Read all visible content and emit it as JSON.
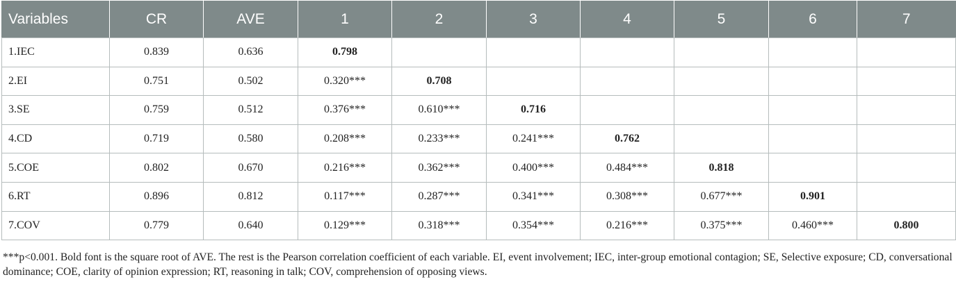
{
  "table": {
    "headers": [
      "Variables",
      "CR",
      "AVE",
      "1",
      "2",
      "3",
      "4",
      "5",
      "6",
      "7"
    ],
    "rows": [
      [
        "1.IEC",
        "0.839",
        "0.636",
        "0.798",
        "",
        "",
        "",
        "",
        "",
        ""
      ],
      [
        "2.EI",
        "0.751",
        "0.502",
        "0.320***",
        "0.708",
        "",
        "",
        "",
        "",
        ""
      ],
      [
        "3.SE",
        "0.759",
        "0.512",
        "0.376***",
        "0.610***",
        "0.716",
        "",
        "",
        "",
        ""
      ],
      [
        "4.CD",
        "0.719",
        "0.580",
        "0.208***",
        "0.233***",
        "0.241***",
        "0.762",
        "",
        "",
        ""
      ],
      [
        "5.COE",
        "0.802",
        "0.670",
        "0.216***",
        "0.362***",
        "0.400***",
        "0.484***",
        "0.818",
        "",
        ""
      ],
      [
        "6.RT",
        "0.896",
        "0.812",
        "0.117***",
        "0.287***",
        "0.341***",
        "0.308***",
        "0.677***",
        "0.901",
        ""
      ],
      [
        "7.COV",
        "0.779",
        "0.640",
        "0.129***",
        "0.318***",
        "0.354***",
        "0.216***",
        "0.375***",
        "0.460***",
        "0.800"
      ]
    ]
  },
  "footnote": "***p<0.001. Bold font is the square root of AVE. The rest is the Pearson correlation coefficient of each variable. EI, event involvement; IEC, inter-group emotional contagion; SE, Selective exposure; CD, conversational dominance; COE, clarity of opinion expression; RT, reasoning in talk; COV, comprehension of opposing views.",
  "colors": {
    "header_bg": "#7f8a8a",
    "header_text": "#ffffff",
    "border": "#b5bcbc"
  }
}
